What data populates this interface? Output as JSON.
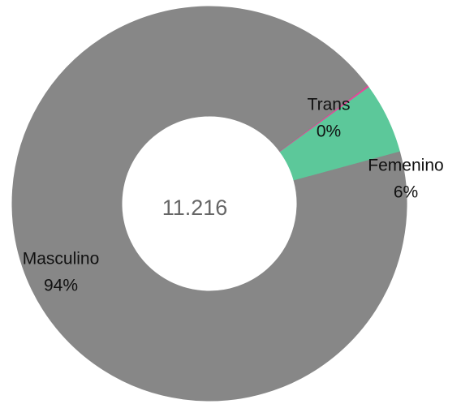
{
  "chart_data": {
    "type": "donut",
    "center_label": "11.216",
    "categories": [
      "Trans",
      "Femenino",
      "Masculino"
    ],
    "values": [
      0.2,
      5.8,
      94
    ],
    "value_labels": [
      "0%",
      "6%",
      "94%"
    ],
    "colors": [
      "#e8449a",
      "#5cc89a",
      "#878787"
    ]
  }
}
